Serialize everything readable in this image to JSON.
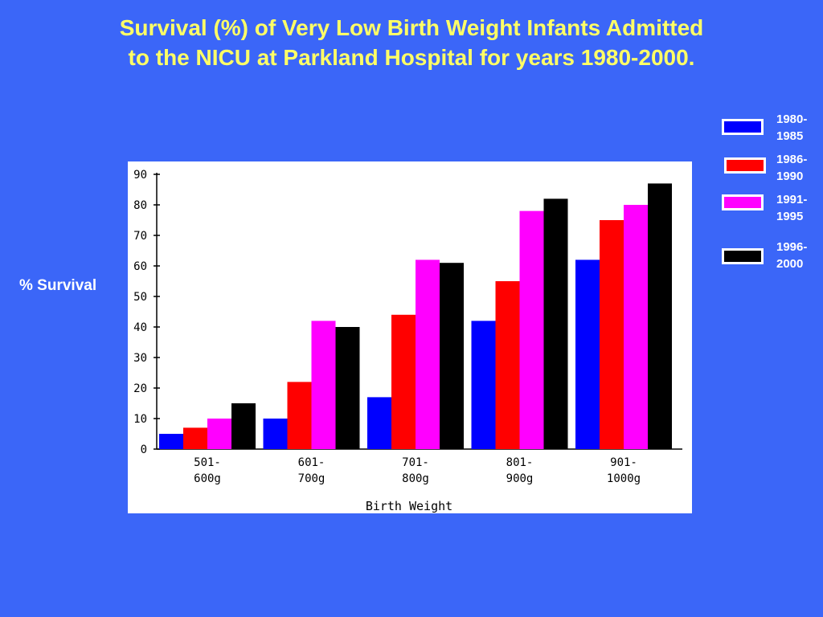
{
  "title": {
    "line1": "Survival (%) of Very Low Birth Weight Infants Admitted",
    "line2": "to the NICU at Parkland Hospital for years 1980-2000."
  },
  "chart_data": {
    "type": "bar",
    "title": "Survival (%) of Very Low Birth Weight Infants Admitted to the NICU at Parkland Hospital for years 1980-2000.",
    "xlabel": "Birth Weight",
    "ylabel": "% Survival",
    "ylim": [
      0,
      90
    ],
    "yticks": [
      0,
      10,
      20,
      30,
      40,
      50,
      60,
      70,
      80,
      90
    ],
    "categories": [
      [
        "501-",
        "600g"
      ],
      [
        "601-",
        "700g"
      ],
      [
        "701-",
        "800g"
      ],
      [
        "801-",
        "900g"
      ],
      [
        "901-",
        "1000g"
      ]
    ],
    "series": [
      {
        "name": "1980-1985",
        "label_lines": [
          "1980-",
          "1985"
        ],
        "color": "#0000FF",
        "values": [
          5,
          10,
          17,
          42,
          62
        ]
      },
      {
        "name": "1986-1990",
        "label_lines": [
          "1986-",
          "1990"
        ],
        "color": "#FF0000",
        "values": [
          7,
          22,
          44,
          55,
          75
        ]
      },
      {
        "name": "1991-1995",
        "label_lines": [
          "1991-",
          "1995"
        ],
        "color": "#FF00FF",
        "values": [
          10,
          42,
          62,
          78,
          80
        ]
      },
      {
        "name": "1996-2000",
        "label_lines": [
          "1996-",
          "2000"
        ],
        "color": "#000000",
        "values": [
          15,
          40,
          61,
          82,
          87
        ]
      }
    ],
    "grid": false,
    "legend_position": "top-right"
  }
}
